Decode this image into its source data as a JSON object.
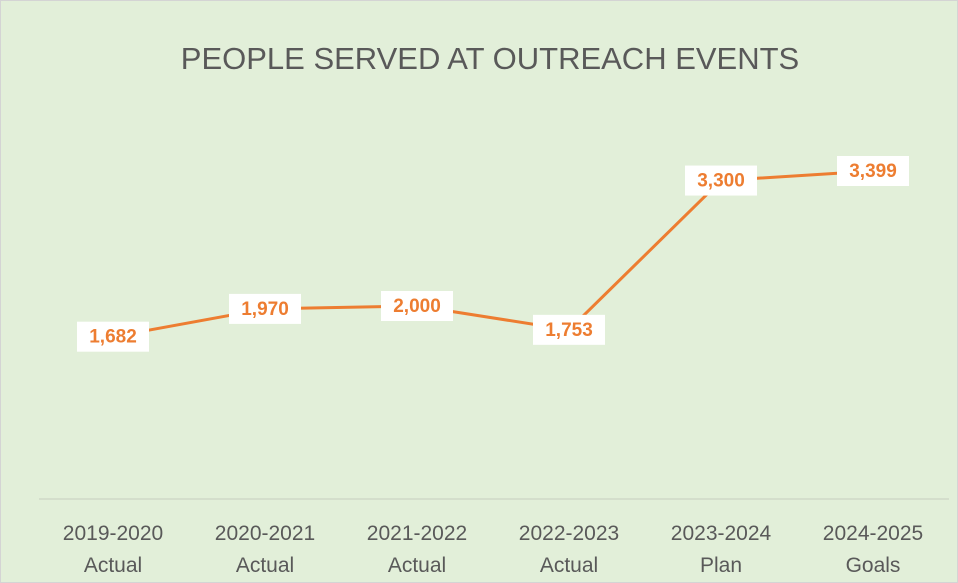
{
  "chart_data": {
    "type": "line",
    "title": "PEOPLE SERVED AT OUTREACH EVENTS",
    "categories": [
      "2019-2020\nActual",
      "2020-2021\nActual",
      "2021-2022\nActual",
      "2022-2023\nActual",
      "2023-2024\nPlan",
      "2024-2025\nGoals"
    ],
    "values": [
      1682,
      1970,
      2000,
      1753,
      3300,
      3399
    ],
    "value_labels": [
      "1,682",
      "1,970",
      "2,000",
      "1,753",
      "3,300",
      "3,399"
    ],
    "color": "#ed7d31",
    "ylim": [
      0,
      4000
    ]
  }
}
